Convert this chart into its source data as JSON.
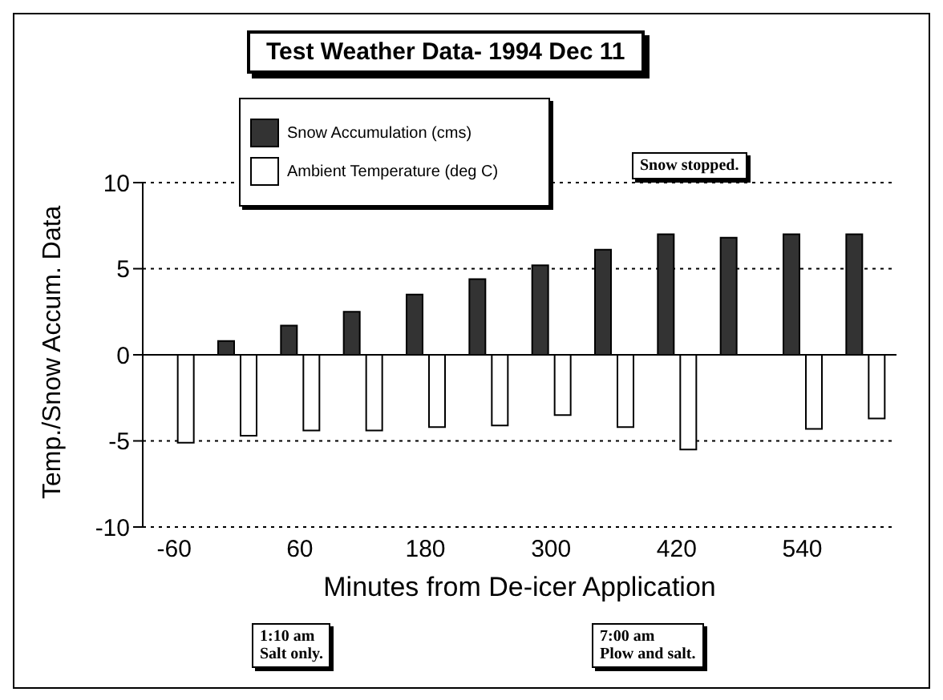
{
  "chart_data": {
    "type": "bar",
    "title": "Test Weather Data- 1994 Dec 11",
    "xlabel": "Minutes from De-icer Application",
    "ylabel": "Temp./Snow Accum. Data",
    "categories": [
      "-60",
      null,
      "60",
      null,
      "180",
      null,
      "300",
      null,
      "420",
      null,
      "540",
      null
    ],
    "series": [
      {
        "name": "Snow Accumulation (cms)",
        "color": "#333333",
        "values": [
          0,
          0.8,
          1.7,
          2.5,
          3.5,
          4.4,
          5.2,
          6.1,
          7,
          6.8,
          7,
          7
        ]
      },
      {
        "name": "Ambient Temperature (deg C)",
        "color": "#ffffff",
        "values": [
          -5.1,
          -4.7,
          -4.4,
          -4.4,
          -4.2,
          -4.1,
          -3.5,
          -4.2,
          -5.5,
          null,
          -4.3,
          -3.7
        ]
      }
    ],
    "ylim": [
      -10,
      10
    ],
    "yticks": [
      -10,
      -5,
      0,
      5,
      10
    ],
    "grid": "y",
    "legend": "top left",
    "annotations": [
      "Snow stopped.",
      "1:10 am\nSalt only.",
      "7:00 am\nPlow and salt."
    ]
  }
}
